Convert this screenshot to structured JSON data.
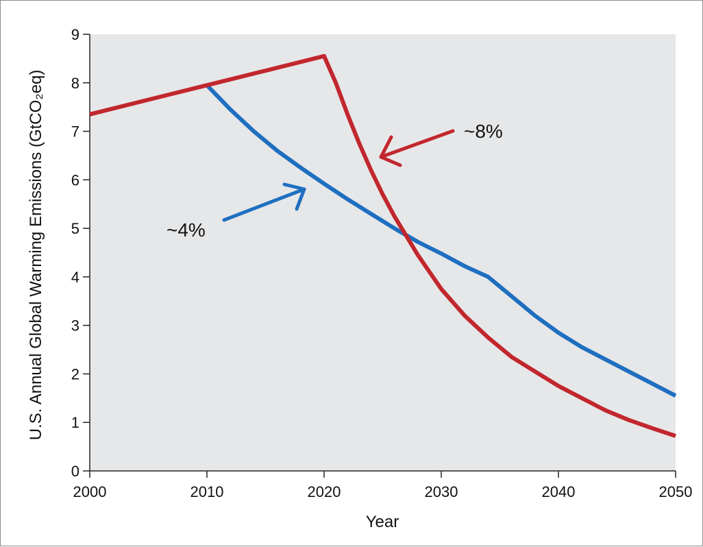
{
  "chart_data": {
    "type": "line",
    "title": "",
    "xlabel": "Year",
    "ylabel": "U.S. Annual Global Warming Emissions (GtCO₂eq)",
    "xlim": [
      2000,
      2050
    ],
    "ylim": [
      0,
      9
    ],
    "x_ticks": [
      "2000",
      "2010",
      "2020",
      "2030",
      "2040",
      "2050"
    ],
    "y_ticks": [
      "0",
      "1",
      "2",
      "3",
      "4",
      "5",
      "6",
      "7",
      "8",
      "9"
    ],
    "grid": false,
    "legend": "none",
    "series": [
      {
        "color": "#1f6fc0",
        "annotation": "~4%",
        "points": [
          [
            2010,
            7.95
          ],
          [
            2012,
            7.45
          ],
          [
            2014,
            7.0
          ],
          [
            2016,
            6.6
          ],
          [
            2018,
            6.25
          ],
          [
            2020,
            5.92
          ],
          [
            2022,
            5.6
          ],
          [
            2024,
            5.3
          ],
          [
            2026,
            5.0
          ],
          [
            2028,
            4.72
          ],
          [
            2030,
            4.48
          ],
          [
            2032,
            4.22
          ],
          [
            2034,
            4.0
          ],
          [
            2036,
            3.6
          ],
          [
            2038,
            3.2
          ],
          [
            2040,
            2.85
          ],
          [
            2042,
            2.55
          ],
          [
            2044,
            2.3
          ],
          [
            2046,
            2.05
          ],
          [
            2048,
            1.8
          ],
          [
            2050,
            1.55
          ]
        ]
      },
      {
        "color": "#c1272d",
        "annotation": "~8%",
        "points": [
          [
            2000,
            7.35
          ],
          [
            2005,
            7.65
          ],
          [
            2010,
            7.95
          ],
          [
            2015,
            8.25
          ],
          [
            2020,
            8.55
          ],
          [
            2021,
            8.0
          ],
          [
            2022,
            7.35
          ],
          [
            2023,
            6.75
          ],
          [
            2024,
            6.2
          ],
          [
            2025,
            5.7
          ],
          [
            2026,
            5.25
          ],
          [
            2027,
            4.85
          ],
          [
            2028,
            4.45
          ],
          [
            2030,
            3.75
          ],
          [
            2032,
            3.2
          ],
          [
            2034,
            2.75
          ],
          [
            2036,
            2.35
          ],
          [
            2038,
            2.05
          ],
          [
            2040,
            1.75
          ],
          [
            2042,
            1.5
          ],
          [
            2044,
            1.25
          ],
          [
            2046,
            1.05
          ],
          [
            2048,
            0.88
          ],
          [
            2050,
            0.72
          ]
        ]
      }
    ]
  }
}
